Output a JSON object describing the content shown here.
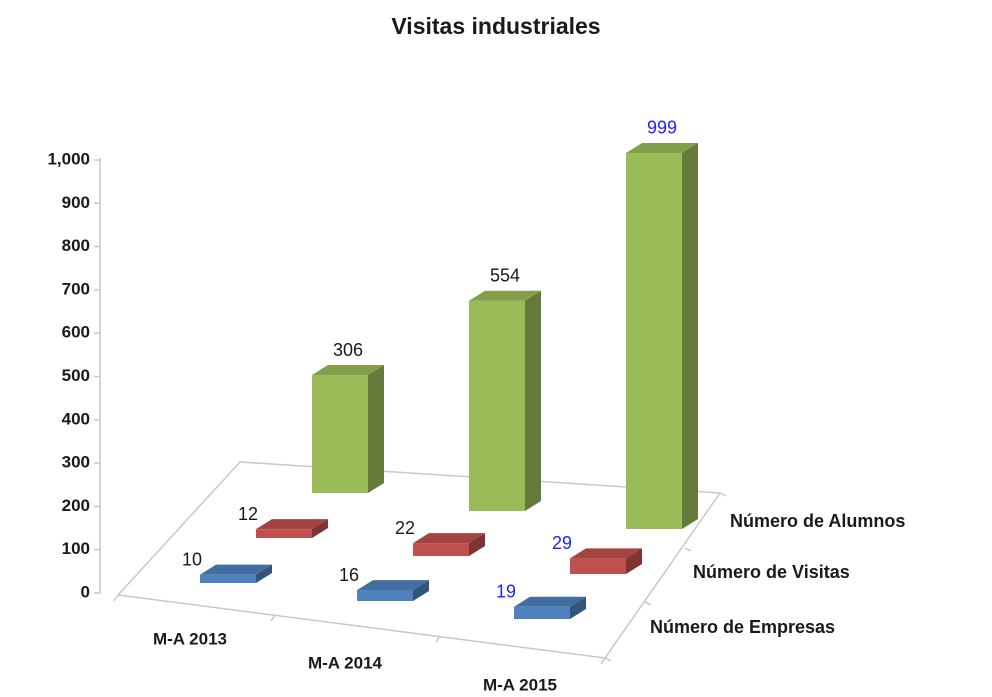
{
  "chart_data": {
    "type": "bar3d",
    "title": "Visitas industriales",
    "categories": [
      "M-A 2013",
      "M-A 2014",
      "M-A 2015"
    ],
    "series": [
      {
        "name": "Número de Empresas",
        "color": "#4f81bd",
        "values": [
          10,
          16,
          19
        ]
      },
      {
        "name": "Número de Visitas",
        "color": "#c0504d",
        "values": [
          12,
          22,
          29
        ]
      },
      {
        "name": "Número de Alumnos",
        "color": "#9bbb59",
        "values": [
          306,
          554,
          999
        ]
      }
    ],
    "ylim": [
      0,
      1000
    ],
    "yticks": [
      0,
      100,
      200,
      300,
      400,
      500,
      600,
      700,
      800,
      900,
      {
        "value": 1000,
        "label": "1,000"
      }
    ]
  }
}
